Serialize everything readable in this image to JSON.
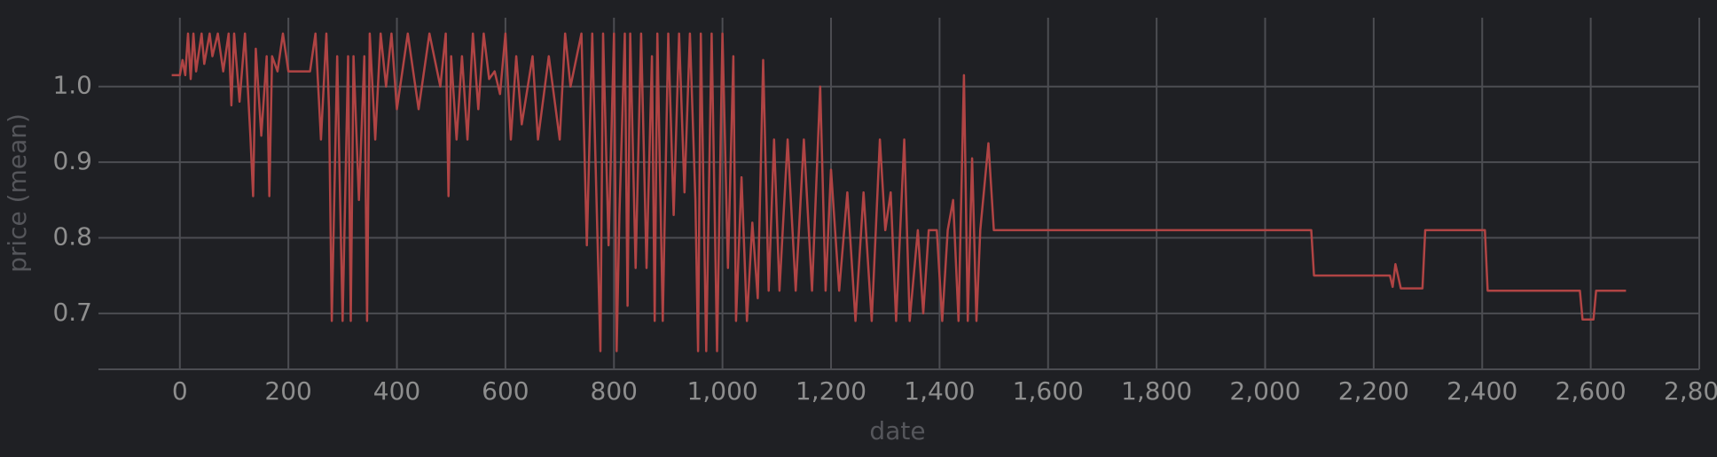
{
  "chart_data": {
    "type": "line",
    "xlabel": "date",
    "ylabel": "price (mean)",
    "color": "#b04444",
    "grid": true,
    "xlim": [
      -150,
      2800
    ],
    "ylim": [
      0.626,
      1.091
    ],
    "xticks": [
      0,
      200,
      400,
      600,
      800,
      {
        "value": 1000,
        "label": "1,000"
      },
      {
        "value": 1200,
        "label": "1,200"
      },
      {
        "value": 1400,
        "label": "1,400"
      },
      {
        "value": 1600,
        "label": "1,600"
      },
      {
        "value": 1800,
        "label": "1,800"
      },
      {
        "value": 2000,
        "label": "2,000"
      },
      {
        "value": 2200,
        "label": "2,200"
      },
      {
        "value": 2400,
        "label": "2,400"
      },
      {
        "value": 2600,
        "label": "2,600"
      },
      {
        "value": 2800,
        "label": "2,800"
      }
    ],
    "yticks": [
      0.7,
      0.8,
      0.9,
      {
        "value": 1,
        "label": "1.0"
      }
    ],
    "x": [
      -15,
      0,
      5,
      10,
      15,
      20,
      25,
      30,
      40,
      45,
      55,
      60,
      70,
      80,
      90,
      95,
      100,
      110,
      120,
      130,
      135,
      140,
      150,
      160,
      165,
      170,
      180,
      190,
      200,
      220,
      240,
      250,
      260,
      270,
      275,
      280,
      290,
      300,
      310,
      315,
      320,
      330,
      340,
      345,
      350,
      360,
      370,
      380,
      390,
      400,
      420,
      440,
      460,
      480,
      490,
      495,
      500,
      510,
      520,
      530,
      540,
      550,
      560,
      570,
      580,
      590,
      600,
      610,
      620,
      630,
      650,
      660,
      680,
      700,
      710,
      720,
      740,
      750,
      760,
      770,
      775,
      780,
      790,
      800,
      805,
      810,
      820,
      825,
      830,
      840,
      850,
      860,
      870,
      875,
      880,
      890,
      900,
      910,
      920,
      930,
      940,
      950,
      955,
      960,
      970,
      980,
      990,
      1000,
      1010,
      1020,
      1025,
      1035,
      1045,
      1055,
      1065,
      1075,
      1085,
      1095,
      1105,
      1120,
      1135,
      1150,
      1165,
      1180,
      1190,
      1200,
      1215,
      1230,
      1245,
      1260,
      1275,
      1290,
      1300,
      1310,
      1320,
      1335,
      1345,
      1360,
      1370,
      1380,
      1395,
      1405,
      1415,
      1425,
      1435,
      1445,
      1452,
      1460,
      1468,
      1475,
      1490,
      1500,
      2085,
      2090,
      2230,
      2235,
      2240,
      2250,
      2290,
      2295,
      2405,
      2410,
      2580,
      2585,
      2605,
      2610,
      2665
    ],
    "values": [
      1.015,
      1.015,
      1.035,
      1.015,
      1.07,
      1.01,
      1.07,
      1.02,
      1.07,
      1.03,
      1.07,
      1.04,
      1.07,
      1.02,
      1.07,
      0.975,
      1.07,
      0.98,
      1.07,
      0.935,
      0.855,
      1.05,
      0.935,
      1.04,
      0.855,
      1.04,
      1.02,
      1.07,
      1.02,
      1.02,
      1.02,
      1.07,
      0.93,
      1.07,
      0.97,
      0.69,
      1.04,
      0.69,
      1.04,
      0.69,
      1.04,
      0.85,
      1.04,
      0.69,
      1.07,
      0.93,
      1.07,
      1.0,
      1.07,
      0.97,
      1.07,
      0.97,
      1.07,
      1.0,
      1.07,
      0.855,
      1.04,
      0.93,
      1.04,
      0.93,
      1.07,
      0.97,
      1.07,
      1.01,
      1.02,
      0.99,
      1.07,
      0.93,
      1.04,
      0.95,
      1.04,
      0.93,
      1.04,
      0.93,
      1.07,
      1.0,
      1.07,
      0.79,
      1.07,
      0.79,
      0.65,
      1.07,
      0.79,
      1.07,
      0.65,
      0.83,
      1.07,
      0.71,
      1.07,
      0.76,
      1.07,
      0.76,
      1.04,
      0.69,
      1.07,
      0.69,
      1.07,
      0.83,
      1.07,
      0.86,
      1.07,
      0.85,
      0.65,
      1.07,
      0.65,
      1.07,
      0.65,
      1.07,
      0.76,
      1.04,
      0.69,
      0.88,
      0.69,
      0.82,
      0.72,
      1.035,
      0.73,
      0.93,
      0.73,
      0.93,
      0.73,
      0.93,
      0.73,
      1.0,
      0.73,
      0.89,
      0.73,
      0.86,
      0.69,
      0.86,
      0.69,
      0.93,
      0.81,
      0.86,
      0.69,
      0.93,
      0.69,
      0.81,
      0.7,
      0.81,
      0.81,
      0.69,
      0.81,
      0.85,
      0.69,
      1.015,
      0.69,
      0.905,
      0.69,
      0.81,
      0.925,
      0.81,
      0.81,
      0.75,
      0.75,
      0.735,
      0.765,
      0.733,
      0.733,
      0.81,
      0.81,
      0.73,
      0.73,
      0.692,
      0.692,
      0.73,
      0.73
    ]
  }
}
